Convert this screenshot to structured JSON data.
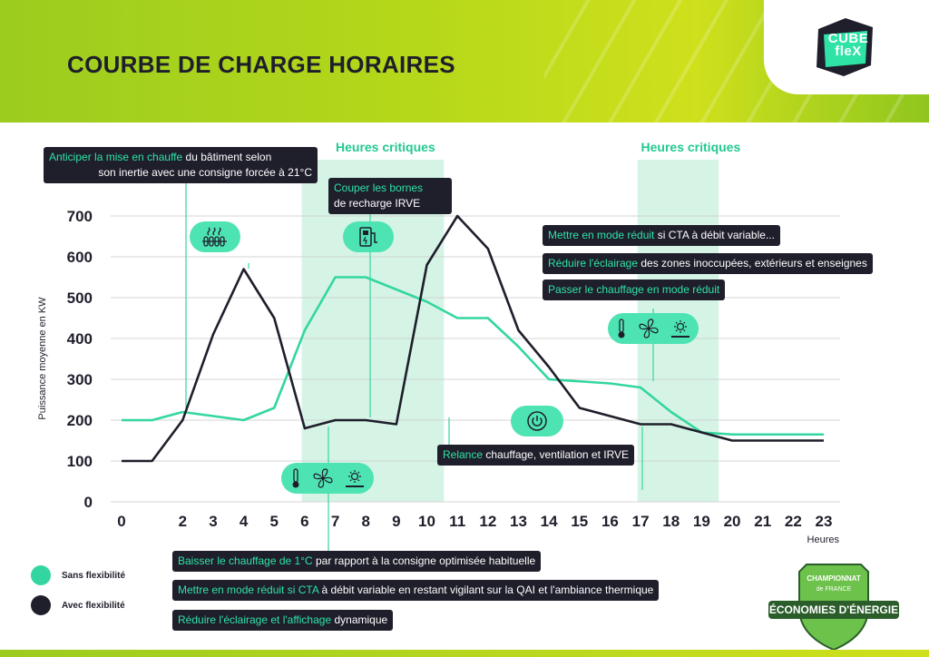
{
  "page": {
    "title": "COURBE DE CHARGE HORAIRES",
    "logo_line1": "CUBE",
    "logo_line2": "fleX",
    "badge_line1": "CHAMPIONNAT",
    "badge_line2": "de FRANCE",
    "badge_line3": "ÉCONOMIES D'ÉNERGIE"
  },
  "colors": {
    "sans": "#33d6a0",
    "avec": "#1f1e2b",
    "critical": "#d6f4e6",
    "accent_text": "#2fe3a6"
  },
  "chart_data": {
    "type": "line",
    "x": [
      0,
      1,
      2,
      3,
      4,
      5,
      6,
      7,
      8,
      9,
      10,
      11,
      12,
      13,
      14,
      15,
      16,
      17,
      18,
      19,
      20,
      21,
      22,
      23
    ],
    "tick_labels": [
      "0",
      "2",
      "3",
      "4",
      "5",
      "6",
      "7",
      "8",
      "9",
      "10",
      "11",
      "12",
      "13",
      "14",
      "15",
      "16",
      "17",
      "18",
      "19",
      "20",
      "21",
      "22",
      "23"
    ],
    "tick_positions": [
      0,
      2,
      3,
      4,
      5,
      6,
      7,
      8,
      9,
      10,
      11,
      12,
      13,
      14,
      15,
      16,
      17,
      18,
      19,
      20,
      21,
      22,
      23
    ],
    "series": [
      {
        "name": "Sans flexibilité",
        "values": [
          200,
          200,
          220,
          210,
          200,
          230,
          420,
          550,
          550,
          520,
          490,
          450,
          450,
          380,
          300,
          295,
          290,
          280,
          220,
          170,
          165,
          165,
          165,
          165
        ]
      },
      {
        "name": "Avec flexibilité",
        "values": [
          100,
          100,
          200,
          410,
          570,
          450,
          180,
          200,
          200,
          190,
          580,
          700,
          620,
          420,
          330,
          230,
          210,
          190,
          190,
          170,
          150,
          150,
          150,
          150
        ]
      }
    ],
    "ylabel": "Puissance moyenne en KW",
    "xlabel": "Heures",
    "ylim": [
      0,
      700
    ],
    "yticks": [
      0,
      100,
      200,
      300,
      400,
      500,
      600,
      700
    ],
    "grid": true,
    "critical_hours": [
      {
        "label": "Heures critiques",
        "from": 7,
        "to": 11
      },
      {
        "label": "Heures critiques",
        "from": 18,
        "to": 20
      }
    ],
    "legend": [
      {
        "label": "Sans flexibilité"
      },
      {
        "label": "Avec flexibilité"
      }
    ]
  },
  "callouts": {
    "anticiper": {
      "hl": "Anticiper la mise en chauffe",
      "rest": " du bâtiment selon",
      "line2": "son inertie avec une consigne forcée à 21°C"
    },
    "couper": {
      "hl": "Couper les bornes",
      "line2": "de recharge IRVE"
    },
    "cta_var": {
      "hl": "Mettre en mode réduit",
      "rest": " si CTA à débit variable..."
    },
    "eclairage_evening": {
      "hl": "Réduire l'éclairage",
      "rest": " des zones inoccupées, extérieurs et enseignes"
    },
    "chauffage_reduit": {
      "hl": "Passer le chauffage en mode réduit",
      "rest": ""
    },
    "relance": {
      "hl": "Relance",
      "rest": " chauffage, ventilation et IRVE"
    },
    "baisser": {
      "hl": "Baisser le chauffage de 1°C",
      "rest": " par rapport à la consigne optimisée habituelle"
    },
    "cta_morning": {
      "hl": "Mettre en mode réduit si CTA",
      "rest": " à débit variable en restant vigilant sur la QAI et l'ambiance thermique"
    },
    "eclairage_morning": {
      "hl": "Réduire l'éclairage et l'affichage",
      "rest": "  dynamique"
    }
  }
}
